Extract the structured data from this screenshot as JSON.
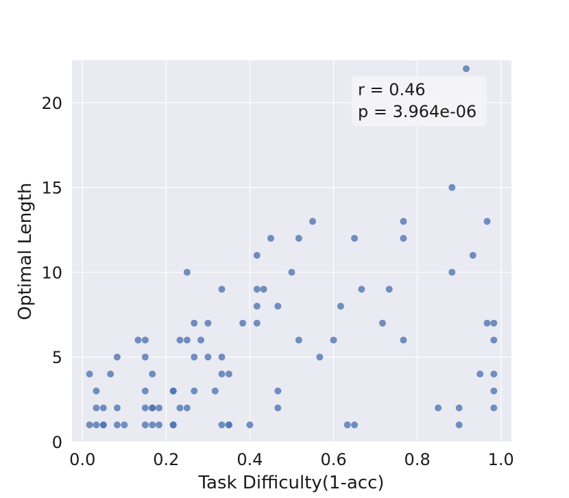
{
  "chart_data": {
    "type": "scatter",
    "xlabel": "Task Difficulty(1-acc)",
    "ylabel": "Optimal Length",
    "xlim": [
      -0.025,
      1.025
    ],
    "ylim": [
      0,
      22.5
    ],
    "xticks": [
      {
        "value": 0.0,
        "label": "0.0"
      },
      {
        "value": 0.2,
        "label": "0.2"
      },
      {
        "value": 0.4,
        "label": "0.4"
      },
      {
        "value": 0.6,
        "label": "0.6"
      },
      {
        "value": 0.8,
        "label": "0.8"
      },
      {
        "value": 1.0,
        "label": "1.0"
      }
    ],
    "yticks": [
      {
        "value": 0,
        "label": "0"
      },
      {
        "value": 5,
        "label": "5"
      },
      {
        "value": 10,
        "label": "10"
      },
      {
        "value": 15,
        "label": "15"
      },
      {
        "value": 20,
        "label": "20"
      }
    ],
    "grid": true,
    "point_color": "#4c72b0",
    "background_color": "#eaeaf2",
    "annotation": {
      "lines": [
        "r = 0.46",
        "p = 3.964e-06"
      ],
      "placement": "top-right"
    },
    "points": [
      [
        0.017,
        4
      ],
      [
        0.017,
        1
      ],
      [
        0.033,
        3
      ],
      [
        0.033,
        2
      ],
      [
        0.033,
        1
      ],
      [
        0.05,
        2
      ],
      [
        0.05,
        1
      ],
      [
        0.05,
        1
      ],
      [
        0.067,
        4
      ],
      [
        0.083,
        5
      ],
      [
        0.083,
        2
      ],
      [
        0.083,
        1
      ],
      [
        0.1,
        1
      ],
      [
        0.133,
        6
      ],
      [
        0.15,
        6
      ],
      [
        0.15,
        5
      ],
      [
        0.15,
        3
      ],
      [
        0.15,
        2
      ],
      [
        0.15,
        1
      ],
      [
        0.167,
        4
      ],
      [
        0.167,
        2
      ],
      [
        0.167,
        2
      ],
      [
        0.167,
        1
      ],
      [
        0.183,
        2
      ],
      [
        0.183,
        1
      ],
      [
        0.217,
        3
      ],
      [
        0.217,
        3
      ],
      [
        0.217,
        1
      ],
      [
        0.217,
        1
      ],
      [
        0.233,
        6
      ],
      [
        0.233,
        2
      ],
      [
        0.25,
        10
      ],
      [
        0.25,
        6
      ],
      [
        0.25,
        2
      ],
      [
        0.267,
        7
      ],
      [
        0.267,
        5
      ],
      [
        0.267,
        3
      ],
      [
        0.283,
        6
      ],
      [
        0.3,
        7
      ],
      [
        0.3,
        5
      ],
      [
        0.317,
        3
      ],
      [
        0.333,
        9
      ],
      [
        0.333,
        5
      ],
      [
        0.333,
        4
      ],
      [
        0.333,
        1
      ],
      [
        0.35,
        4
      ],
      [
        0.35,
        1
      ],
      [
        0.35,
        1
      ],
      [
        0.383,
        7
      ],
      [
        0.4,
        1
      ],
      [
        0.417,
        11
      ],
      [
        0.417,
        9
      ],
      [
        0.417,
        8
      ],
      [
        0.417,
        7
      ],
      [
        0.433,
        9
      ],
      [
        0.45,
        12
      ],
      [
        0.467,
        8
      ],
      [
        0.467,
        3
      ],
      [
        0.467,
        2
      ],
      [
        0.5,
        10
      ],
      [
        0.517,
        12
      ],
      [
        0.517,
        6
      ],
      [
        0.55,
        13
      ],
      [
        0.567,
        5
      ],
      [
        0.6,
        6
      ],
      [
        0.617,
        8
      ],
      [
        0.633,
        1
      ],
      [
        0.65,
        12
      ],
      [
        0.65,
        1
      ],
      [
        0.667,
        9
      ],
      [
        0.717,
        7
      ],
      [
        0.733,
        9
      ],
      [
        0.767,
        13
      ],
      [
        0.767,
        12
      ],
      [
        0.767,
        6
      ],
      [
        0.85,
        2
      ],
      [
        0.883,
        15
      ],
      [
        0.883,
        10
      ],
      [
        0.9,
        2
      ],
      [
        0.9,
        1
      ],
      [
        0.917,
        22
      ],
      [
        0.933,
        11
      ],
      [
        0.95,
        4
      ],
      [
        0.967,
        13
      ],
      [
        0.967,
        7
      ],
      [
        0.983,
        7
      ],
      [
        0.983,
        6
      ],
      [
        0.983,
        4
      ],
      [
        0.983,
        3
      ],
      [
        0.983,
        2
      ]
    ]
  }
}
